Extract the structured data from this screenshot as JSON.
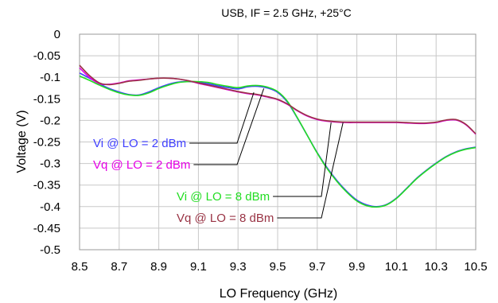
{
  "chart_data": {
    "type": "line",
    "title": "USB, IF = 2.5 GHz, +25°C",
    "xlabel": "LO Frequency (GHz)",
    "ylabel": "Voltage (V)",
    "xlim": [
      8.5,
      10.5
    ],
    "ylim": [
      -0.5,
      0
    ],
    "xticks": [
      8.5,
      8.7,
      8.9,
      9.1,
      9.3,
      9.5,
      9.7,
      9.9,
      10.1,
      10.3,
      10.5
    ],
    "yticks": [
      0,
      -0.05,
      -0.1,
      -0.15,
      -0.2,
      -0.25,
      -0.3,
      -0.35,
      -0.4,
      -0.45,
      -0.5
    ],
    "xtick_labels": [
      "8.5",
      "8.7",
      "8.9",
      "9.1",
      "9.3",
      "9.5",
      "9.7",
      "9.9",
      "10.1",
      "10.3",
      "10.5"
    ],
    "ytick_labels": [
      "0",
      "-0.05",
      "-0.1",
      "-0.15",
      "-0.2",
      "-0.25",
      "-0.3",
      "-0.35",
      "-0.4",
      "-0.45",
      "-0.5"
    ],
    "grid": true,
    "legend": "annotations",
    "series": [
      {
        "name": "Vi @ LO = 2 dBm",
        "color": "#4040ff",
        "x": [
          8.5,
          8.55,
          8.6,
          8.65,
          8.7,
          8.75,
          8.8,
          8.85,
          8.9,
          8.95,
          9.0,
          9.05,
          9.1,
          9.15,
          9.2,
          9.25,
          9.3,
          9.35,
          9.4,
          9.45,
          9.5,
          9.55,
          9.6,
          9.65,
          9.7,
          9.75,
          9.8,
          9.85,
          9.9,
          9.95,
          10.0,
          10.05,
          10.1,
          10.15,
          10.2,
          10.25,
          10.3,
          10.35,
          10.4,
          10.45,
          10.5
        ],
        "y": [
          -0.09,
          -0.102,
          -0.115,
          -0.126,
          -0.134,
          -0.14,
          -0.141,
          -0.134,
          -0.124,
          -0.116,
          -0.111,
          -0.11,
          -0.112,
          -0.115,
          -0.12,
          -0.124,
          -0.127,
          -0.122,
          -0.121,
          -0.125,
          -0.135,
          -0.158,
          -0.195,
          -0.235,
          -0.275,
          -0.31,
          -0.34,
          -0.365,
          -0.385,
          -0.396,
          -0.4,
          -0.395,
          -0.38,
          -0.358,
          -0.335,
          -0.316,
          -0.299,
          -0.284,
          -0.273,
          -0.266,
          -0.262
        ]
      },
      {
        "name": "Vq @ LO = 2 dBm",
        "color": "#e600e6",
        "x": [
          8.5,
          8.55,
          8.6,
          8.65,
          8.7,
          8.75,
          8.8,
          8.85,
          8.9,
          8.95,
          9.0,
          9.05,
          9.1,
          9.15,
          9.2,
          9.25,
          9.3,
          9.35,
          9.4,
          9.45,
          9.5,
          9.55,
          9.6,
          9.65,
          9.7,
          9.75,
          9.8,
          9.85,
          9.9,
          9.95,
          10.0,
          10.05,
          10.1,
          10.15,
          10.2,
          10.25,
          10.3,
          10.35,
          10.4,
          10.45,
          10.5
        ],
        "y": [
          -0.078,
          -0.1,
          -0.115,
          -0.116,
          -0.113,
          -0.108,
          -0.106,
          -0.104,
          -0.102,
          -0.102,
          -0.104,
          -0.108,
          -0.114,
          -0.119,
          -0.124,
          -0.129,
          -0.134,
          -0.138,
          -0.141,
          -0.146,
          -0.152,
          -0.163,
          -0.178,
          -0.19,
          -0.198,
          -0.202,
          -0.204,
          -0.205,
          -0.205,
          -0.205,
          -0.205,
          -0.205,
          -0.205,
          -0.206,
          -0.207,
          -0.207,
          -0.205,
          -0.2,
          -0.199,
          -0.21,
          -0.232
        ]
      },
      {
        "name": "Vi @ LO = 8 dBm",
        "color": "#22dd22",
        "x": [
          8.5,
          8.55,
          8.6,
          8.65,
          8.7,
          8.75,
          8.8,
          8.85,
          8.9,
          8.95,
          9.0,
          9.05,
          9.1,
          9.15,
          9.2,
          9.25,
          9.3,
          9.35,
          9.4,
          9.45,
          9.5,
          9.55,
          9.6,
          9.65,
          9.7,
          9.75,
          9.8,
          9.85,
          9.9,
          9.95,
          10.0,
          10.05,
          10.1,
          10.15,
          10.2,
          10.25,
          10.3,
          10.35,
          10.4,
          10.45,
          10.5
        ],
        "y": [
          -0.097,
          -0.107,
          -0.118,
          -0.128,
          -0.136,
          -0.141,
          -0.142,
          -0.136,
          -0.126,
          -0.118,
          -0.112,
          -0.11,
          -0.11,
          -0.112,
          -0.117,
          -0.121,
          -0.124,
          -0.12,
          -0.119,
          -0.123,
          -0.133,
          -0.156,
          -0.194,
          -0.235,
          -0.276,
          -0.312,
          -0.342,
          -0.367,
          -0.387,
          -0.398,
          -0.401,
          -0.396,
          -0.381,
          -0.359,
          -0.336,
          -0.317,
          -0.3,
          -0.285,
          -0.274,
          -0.267,
          -0.263
        ]
      },
      {
        "name": "Vq @ LO = 8 dBm",
        "color": "#993344",
        "x": [
          8.5,
          8.55,
          8.6,
          8.65,
          8.7,
          8.75,
          8.8,
          8.85,
          8.9,
          8.95,
          9.0,
          9.05,
          9.1,
          9.15,
          9.2,
          9.25,
          9.3,
          9.35,
          9.4,
          9.45,
          9.5,
          9.55,
          9.6,
          9.65,
          9.7,
          9.75,
          9.8,
          9.85,
          9.9,
          9.95,
          10.0,
          10.05,
          10.1,
          10.15,
          10.2,
          10.25,
          10.3,
          10.35,
          10.4,
          10.45,
          10.5
        ],
        "y": [
          -0.072,
          -0.096,
          -0.113,
          -0.117,
          -0.114,
          -0.109,
          -0.107,
          -0.104,
          -0.102,
          -0.102,
          -0.104,
          -0.108,
          -0.113,
          -0.118,
          -0.123,
          -0.128,
          -0.133,
          -0.137,
          -0.14,
          -0.145,
          -0.151,
          -0.162,
          -0.177,
          -0.189,
          -0.197,
          -0.201,
          -0.203,
          -0.204,
          -0.204,
          -0.204,
          -0.204,
          -0.204,
          -0.204,
          -0.205,
          -0.206,
          -0.206,
          -0.204,
          -0.199,
          -0.198,
          -0.209,
          -0.231
        ]
      }
    ],
    "annotations": [
      {
        "text": "Vi @ LO = 2 dBm",
        "color": "#4040ff",
        "series_index": 0,
        "point": [
          9.38,
          -0.135
        ]
      },
      {
        "text": "Vq @ LO = 2 dBm",
        "color": "#e600e6",
        "series_index": 1,
        "point": [
          9.43,
          -0.126
        ]
      },
      {
        "text": "Vi @ LO = 8 dBm",
        "color": "#22dd22",
        "series_index": 2,
        "point": [
          9.77,
          -0.205
        ]
      },
      {
        "text": "Vq @ LO = 8 dBm",
        "color": "#993344",
        "series_index": 3,
        "point": [
          9.83,
          -0.205
        ]
      }
    ]
  }
}
